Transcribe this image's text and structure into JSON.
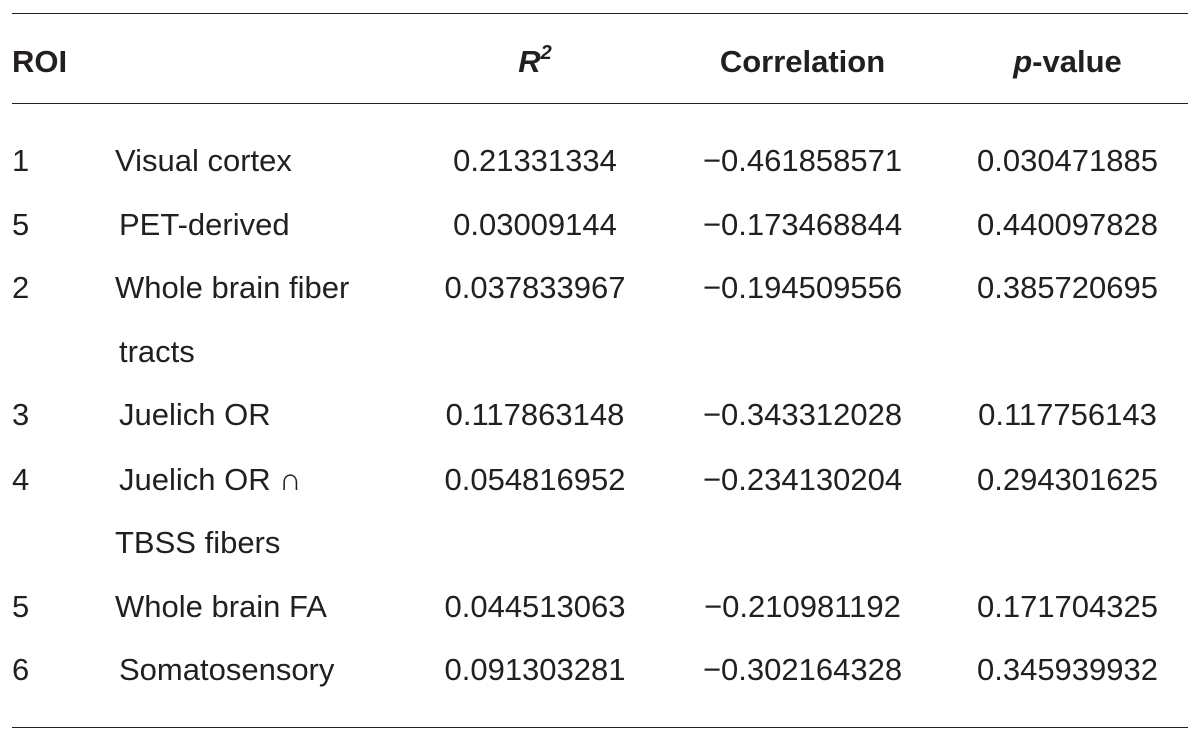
{
  "table": {
    "headers": {
      "roi": "ROI",
      "r2_base": "R",
      "r2_sup": "2",
      "correlation": "Correlation",
      "p_italic": "p",
      "p_suffix": "-value"
    },
    "rows": [
      {
        "roi": "1",
        "name": [
          "Visual cortex"
        ],
        "r2": "0.21331334",
        "correlation": "−0.461858571",
        "p": "0.030471885"
      },
      {
        "roi": "5",
        "name": [
          "PET-derived"
        ],
        "r2": "0.03009144",
        "correlation": "−0.173468844",
        "p": "0.440097828"
      },
      {
        "roi": "2",
        "name": [
          "Whole brain fiber",
          "tracts"
        ],
        "r2": "0.037833967",
        "correlation": "−0.194509556",
        "p": "0.385720695"
      },
      {
        "roi": "3",
        "name": [
          "Juelich OR"
        ],
        "r2": "0.117863148",
        "correlation": "−0.343312028",
        "p": "0.117756143"
      },
      {
        "roi": "4",
        "name": [
          "Juelich OR ∩",
          "TBSS fibers"
        ],
        "r2": "0.054816952",
        "correlation": "−0.234130204",
        "p": "0.294301625"
      },
      {
        "roi": "5",
        "name": [
          "Whole brain FA"
        ],
        "r2": "0.044513063",
        "correlation": "−0.210981192",
        "p": "0.171704325"
      },
      {
        "roi": "6",
        "name": [
          "Somatosensory"
        ],
        "r2": "0.091303281",
        "correlation": "−0.302164328",
        "p": "0.345939932"
      }
    ]
  }
}
